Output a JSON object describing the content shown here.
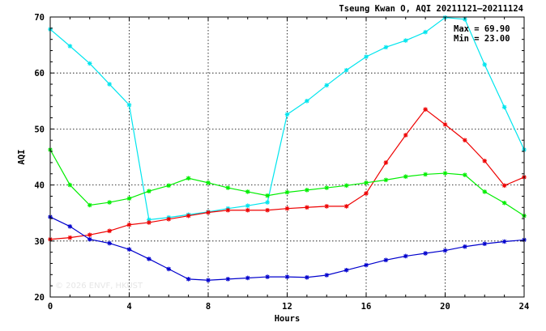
{
  "chart_data": {
    "type": "line",
    "title": "Tseung Kwan O, AQI 20211121–20211124",
    "xlabel": "Hours",
    "ylabel": "AQI",
    "xlim": [
      0,
      24
    ],
    "ylim": [
      20,
      70
    ],
    "x_ticks": [
      "0",
      "4",
      "8",
      "12",
      "16",
      "20",
      "24"
    ],
    "y_ticks": [
      "20",
      "30",
      "40",
      "50",
      "60",
      "70"
    ],
    "grid": true,
    "stats": {
      "max": "Max = 69.90",
      "min": "Min = 23.00"
    },
    "watermark": "© 2026  ENVF, HKUST",
    "x": [
      0,
      1,
      2,
      3,
      4,
      5,
      6,
      7,
      8,
      9,
      10,
      11,
      12,
      13,
      14,
      15,
      16,
      17,
      18,
      19,
      20,
      21,
      22,
      23,
      24
    ],
    "series": [
      {
        "color": "#00e5ee",
        "values": [
          67.8,
          64.8,
          61.7,
          58.0,
          54.3,
          33.8,
          34.2,
          34.7,
          35.2,
          35.8,
          36.3,
          36.9,
          52.6,
          55.0,
          57.8,
          60.5,
          62.9,
          64.6,
          65.8,
          67.3,
          69.9,
          69.6,
          61.5,
          53.9,
          46.3
        ]
      },
      {
        "color": "#ee0000",
        "values": [
          30.3,
          30.6,
          31.1,
          31.8,
          32.9,
          33.3,
          33.9,
          34.5,
          35.1,
          35.5,
          35.5,
          35.5,
          35.8,
          36.0,
          36.2,
          36.2,
          38.5,
          44.0,
          48.9,
          53.5,
          50.8,
          48.0,
          44.3,
          39.9,
          41.4
        ]
      },
      {
        "color": "#00ee00",
        "values": [
          46.3,
          40.0,
          36.4,
          36.9,
          37.6,
          38.9,
          39.9,
          41.2,
          40.4,
          39.5,
          38.8,
          38.1,
          38.7,
          39.1,
          39.5,
          39.9,
          40.4,
          40.9,
          41.5,
          41.9,
          42.1,
          41.8,
          38.8,
          36.8,
          34.5
        ]
      },
      {
        "color": "#0000cd",
        "values": [
          34.3,
          32.6,
          30.3,
          29.6,
          28.5,
          26.8,
          25.0,
          23.2,
          23.0,
          23.2,
          23.4,
          23.6,
          23.6,
          23.5,
          23.9,
          24.8,
          25.7,
          26.6,
          27.3,
          27.8,
          28.3,
          29.0,
          29.5,
          29.9,
          30.2
        ]
      }
    ]
  }
}
